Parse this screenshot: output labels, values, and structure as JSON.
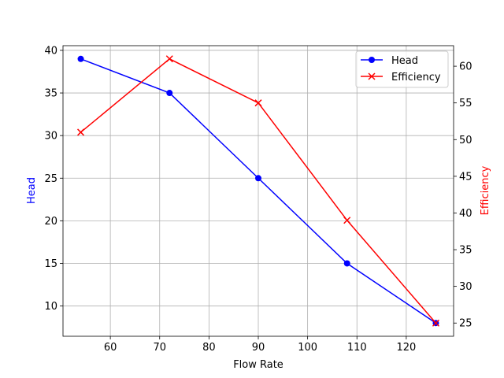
{
  "chart_data": {
    "type": "line",
    "title": "",
    "xlabel": "Flow Rate",
    "ylabel_left": "Head",
    "ylabel_right": "Efficiency",
    "x": [
      54,
      72,
      90,
      108,
      126
    ],
    "xlim": [
      50.4,
      129.6
    ],
    "xticks": [
      60,
      70,
      80,
      90,
      100,
      110,
      120
    ],
    "ylim_left": [
      6.45,
      40.55
    ],
    "yticks_left": [
      10,
      15,
      20,
      25,
      30,
      35,
      40
    ],
    "ylim_right": [
      23.2,
      62.8
    ],
    "yticks_right": [
      25,
      30,
      35,
      40,
      45,
      50,
      55,
      60
    ],
    "grid": true,
    "legend_position": "upper right",
    "series": [
      {
        "name": "Head",
        "axis": "left",
        "color": "#0000ff",
        "marker": "circle",
        "values": [
          39,
          35,
          25,
          15,
          8
        ]
      },
      {
        "name": "Efficiency",
        "axis": "right",
        "color": "#ff0000",
        "marker": "x",
        "values": [
          51,
          61,
          55,
          39,
          25
        ]
      }
    ],
    "left_label_color": "#0000ff",
    "right_label_color": "#ff0000"
  }
}
